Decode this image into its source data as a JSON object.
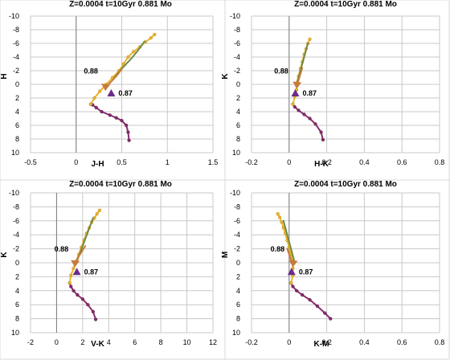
{
  "chart_data": [
    {
      "type": "scatter",
      "title": "Z=0.0004  t=10Gyr  0.881 Mo",
      "xlabel": "J-H",
      "ylabel": "H",
      "xlim": [
        -0.5,
        1.5
      ],
      "ylim": [
        10,
        -10
      ],
      "xticks": [
        "-0.5",
        "0",
        "0.5",
        "1",
        "1.5"
      ],
      "yticks": [
        "10",
        "8",
        "6",
        "4",
        "2",
        "0",
        "-2",
        "-4",
        "-6",
        "-8",
        "-10"
      ],
      "grid": true,
      "series": [
        {
          "color": "#8b2d6e",
          "x": [
            0.58,
            0.57,
            0.55,
            0.5,
            0.44,
            0.37,
            0.28,
            0.22,
            0.18,
            0.16
          ],
          "y": [
            8.2,
            7.0,
            6.0,
            5.3,
            4.9,
            4.5,
            4.0,
            3.4,
            3.0,
            2.9
          ]
        },
        {
          "color": "#e8b62c",
          "x": [
            0.16,
            0.2,
            0.26,
            0.33,
            0.4,
            0.47,
            0.52,
            0.57,
            0.63,
            0.7,
            0.76,
            0.82,
            0.86
          ],
          "y": [
            2.9,
            2.0,
            1.0,
            0.0,
            -1.0,
            -2.0,
            -3.0,
            -4.0,
            -4.8,
            -5.5,
            -6.2,
            -6.8,
            -7.3
          ]
        },
        {
          "color": "#6f8a4a",
          "x": [
            0.42,
            0.5,
            0.6,
            0.68,
            0.75
          ],
          "y": [
            -1.0,
            -2.3,
            -3.7,
            -5.0,
            -6.3
          ]
        },
        {
          "color": "#c87a3a",
          "x": [
            0.5,
            0.44,
            0.37,
            0.32
          ],
          "y": [
            -2.2,
            -1.2,
            -0.2,
            0.6
          ]
        }
      ],
      "annotations": [
        {
          "text": "0.88",
          "x": 0.31,
          "y": -0.9
        },
        {
          "text": "0.87",
          "x": 0.42,
          "y": 1.3
        }
      ]
    },
    {
      "type": "scatter",
      "title": "Z=0.0004  t=10Gyr  0.881 Mo",
      "xlabel": "H-K",
      "ylabel": "K",
      "xlim": [
        -0.2,
        0.8
      ],
      "ylim": [
        10,
        -10
      ],
      "xticks": [
        "-0.2",
        "0",
        "0.2",
        "0.4",
        "0.6",
        "0.8"
      ],
      "yticks": [
        "10",
        "8",
        "6",
        "4",
        "2",
        "0",
        "-2",
        "-4",
        "-6",
        "-8",
        "-10"
      ],
      "grid": true,
      "series": [
        {
          "color": "#8b2d6e",
          "x": [
            0.18,
            0.17,
            0.14,
            0.11,
            0.08,
            0.05,
            0.03,
            0.02
          ],
          "y": [
            8.1,
            7.0,
            5.8,
            5.0,
            4.4,
            3.8,
            3.3,
            2.9
          ]
        },
        {
          "color": "#e8b62c",
          "x": [
            0.02,
            0.03,
            0.04,
            0.04,
            0.05,
            0.06,
            0.07,
            0.08,
            0.09,
            0.1,
            0.11
          ],
          "y": [
            2.9,
            1.8,
            0.8,
            -0.2,
            -1.2,
            -2.3,
            -3.3,
            -4.4,
            -5.2,
            -6.0,
            -6.6
          ]
        },
        {
          "color": "#6f8a4a",
          "x": [
            0.04,
            0.06,
            0.08,
            0.1
          ],
          "y": [
            0.0,
            -2.0,
            -4.0,
            -6.0
          ]
        },
        {
          "color": "#c87a3a",
          "x": [
            0.07,
            0.06,
            0.05,
            0.04
          ],
          "y": [
            -2.4,
            -1.5,
            -0.6,
            0.3
          ]
        }
      ],
      "annotations": [
        {
          "text": "0.88",
          "x": 0.03,
          "y": -0.9
        },
        {
          "text": "0.87",
          "x": 0.05,
          "y": 1.3
        }
      ]
    },
    {
      "type": "scatter",
      "title": "Z=0.0004  t=10Gyr  0.881 Mo",
      "xlabel": "V-K",
      "ylabel": "K",
      "xlim": [
        -2,
        12
      ],
      "ylim": [
        10,
        -10
      ],
      "xticks": [
        "-2",
        "0",
        "2",
        "4",
        "6",
        "8",
        "10",
        "12"
      ],
      "yticks": [
        "10",
        "8",
        "6",
        "4",
        "2",
        "0",
        "-2",
        "-4",
        "-6",
        "-8",
        "-10"
      ],
      "grid": true,
      "series": [
        {
          "color": "#8b2d6e",
          "x": [
            3.0,
            2.8,
            2.4,
            2.0,
            1.6,
            1.3,
            1.1,
            1.0
          ],
          "y": [
            8.1,
            7.0,
            6.0,
            5.2,
            4.6,
            4.0,
            3.4,
            2.9
          ]
        },
        {
          "color": "#e8b62c",
          "x": [
            1.0,
            1.1,
            1.3,
            1.5,
            1.7,
            1.9,
            2.1,
            2.3,
            2.5,
            2.7,
            2.9,
            3.1,
            3.3
          ],
          "y": [
            2.9,
            1.8,
            0.8,
            -0.2,
            -1.2,
            -2.2,
            -3.2,
            -4.2,
            -5.0,
            -5.8,
            -6.4,
            -7.0,
            -7.5
          ]
        },
        {
          "color": "#6f8a4a",
          "x": [
            1.6,
            2.0,
            2.4,
            2.8
          ],
          "y": [
            -0.4,
            -2.4,
            -4.4,
            -6.4
          ]
        },
        {
          "color": "#c87a3a",
          "x": [
            2.2,
            1.9,
            1.6,
            1.4
          ],
          "y": [
            -2.4,
            -1.5,
            -0.6,
            0.3
          ]
        }
      ],
      "annotations": [
        {
          "text": "0.88",
          "x": 1.4,
          "y": -0.9
        },
        {
          "text": "0.87",
          "x": 1.8,
          "y": 1.3
        }
      ]
    },
    {
      "type": "scatter",
      "title": "Z=0.0004  t=10Gyr  0.881 Mo",
      "xlabel": "K-M",
      "ylabel": "M",
      "xlim": [
        -0.2,
        0.8
      ],
      "ylim": [
        10,
        -10
      ],
      "xticks": [
        "-0.2",
        "0",
        "0.2",
        "0.4",
        "0.6",
        "0.8"
      ],
      "yticks": [
        "10",
        "8",
        "6",
        "4",
        "2",
        "0",
        "-2",
        "-4",
        "-6",
        "-8",
        "-10"
      ],
      "grid": true,
      "series": [
        {
          "color": "#8b2d6e",
          "x": [
            0.22,
            0.19,
            0.15,
            0.11,
            0.07,
            0.04,
            0.02,
            0.01
          ],
          "y": [
            8.0,
            7.2,
            6.2,
            5.3,
            4.6,
            4.0,
            3.4,
            2.9
          ]
        },
        {
          "color": "#e8b62c",
          "x": [
            0.01,
            0.02,
            0.02,
            0.02,
            0.01,
            0.0,
            -0.01,
            -0.02,
            -0.03,
            -0.04,
            -0.05,
            -0.06
          ],
          "y": [
            2.9,
            1.8,
            0.8,
            -0.2,
            -1.2,
            -2.2,
            -3.2,
            -4.2,
            -5.0,
            -5.8,
            -6.5,
            -7.0
          ]
        },
        {
          "color": "#6f8a4a",
          "x": [
            0.03,
            0.01,
            -0.01,
            -0.03
          ],
          "y": [
            0.0,
            -2.0,
            -4.0,
            -6.0
          ]
        },
        {
          "color": "#c87a3a",
          "x": [
            -0.01,
            0.0,
            0.01,
            0.02
          ],
          "y": [
            -2.0,
            -1.2,
            -0.4,
            0.3
          ]
        }
      ],
      "annotations": [
        {
          "text": "0.88",
          "x": 0.01,
          "y": -0.9
        },
        {
          "text": "0.87",
          "x": 0.03,
          "y": 1.3
        }
      ]
    }
  ]
}
